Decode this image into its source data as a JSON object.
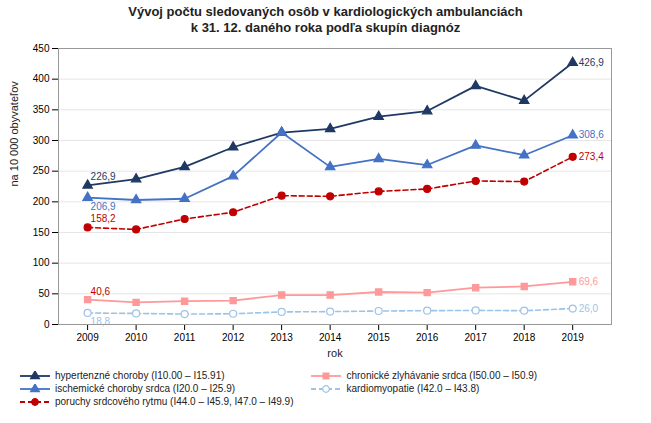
{
  "chart_data": {
    "type": "line",
    "title": "Vývoj počtu sledovaných osôb v kardiologických ambulanciách",
    "subtitle": "k 31. 12. daného roka podľa skupín diagnóz",
    "xlabel": "rok",
    "ylabel": "na 10 000 obyvateľov",
    "x": [
      2009,
      2010,
      2011,
      2012,
      2013,
      2014,
      2015,
      2016,
      2017,
      2018,
      2019
    ],
    "xlim": [
      2008.4,
      2019.8
    ],
    "xticks": [
      2009,
      2010,
      2011,
      2012,
      2013,
      2014,
      2015,
      2016,
      2017,
      2018,
      2019
    ],
    "ylim": [
      0,
      450
    ],
    "yticks": [
      0,
      50,
      100,
      150,
      200,
      250,
      300,
      350,
      400,
      450
    ],
    "grid": true,
    "legend": "bottom",
    "series": [
      {
        "name": "hypertenzné choroby (I10.00 – I15.91)",
        "color": "#1F3864",
        "marker": "triangle",
        "line_style": "solid",
        "values": [
          226.9,
          237.0,
          257.0,
          289.0,
          313.0,
          319.0,
          339.0,
          348.0,
          389.0,
          365.0,
          426.9
        ]
      },
      {
        "name": "ischemické choroby srdca (I20.0 – I25.9)",
        "color": "#4472C4",
        "marker": "triangle",
        "line_style": "solid",
        "values": [
          206.9,
          203.0,
          205.0,
          242.0,
          313.0,
          257.0,
          270.0,
          260.0,
          292.0,
          276.0,
          308.6
        ]
      },
      {
        "name": "poruchy srdcového rytmu (I44.0 – I45.9, I47.0 – I49.9)",
        "color": "#C00000",
        "marker": "circle",
        "line_style": "dashed",
        "values": [
          158.2,
          155.0,
          172.0,
          183.0,
          210.0,
          209.0,
          217.0,
          221.0,
          234.0,
          233.0,
          273.4
        ]
      },
      {
        "name": "chronické zlyhávanie srdca (I50.00 – I50.9)",
        "color": "#FF9999",
        "marker": "square",
        "line_style": "solid",
        "values": [
          40.6,
          36.0,
          38.0,
          39.0,
          48.0,
          48.0,
          53.0,
          52.0,
          60.0,
          62.0,
          69.6
        ]
      },
      {
        "name": "kardiomyopatie (I42.0 – I43.8)",
        "color": "#9DC3E6",
        "marker": "hollow-circle",
        "line_style": "dashed",
        "values": [
          18.8,
          18.0,
          17.0,
          17.5,
          20.5,
          21.0,
          22.0,
          22.5,
          23.0,
          22.5,
          26.0
        ]
      }
    ],
    "annotations": [
      {
        "text": "226,9",
        "x": 2009,
        "y": 226.9,
        "color": "#1F3864"
      },
      {
        "text": "206,9",
        "x": 2009,
        "y": 206.9,
        "color": "#4472C4"
      },
      {
        "text": "158,2",
        "x": 2009,
        "y": 158.2,
        "color": "#C00000"
      },
      {
        "text": "40,6",
        "x": 2009,
        "y": 40.6,
        "color": "#C00000"
      },
      {
        "text": "18,8",
        "x": 2009,
        "y": 18.8,
        "color": "#9DC3E6"
      },
      {
        "text": "426,9",
        "x": 2019,
        "y": 426.9,
        "color": "#1F3864"
      },
      {
        "text": "308,6",
        "x": 2019,
        "y": 308.6,
        "color": "#4472C4"
      },
      {
        "text": "273,4",
        "x": 2019,
        "y": 273.4,
        "color": "#C00000"
      },
      {
        "text": "69,6",
        "x": 2019,
        "y": 69.6,
        "color": "#FF9999"
      },
      {
        "text": "26,0",
        "x": 2019,
        "y": 26.0,
        "color": "#9DC3E6"
      }
    ]
  }
}
